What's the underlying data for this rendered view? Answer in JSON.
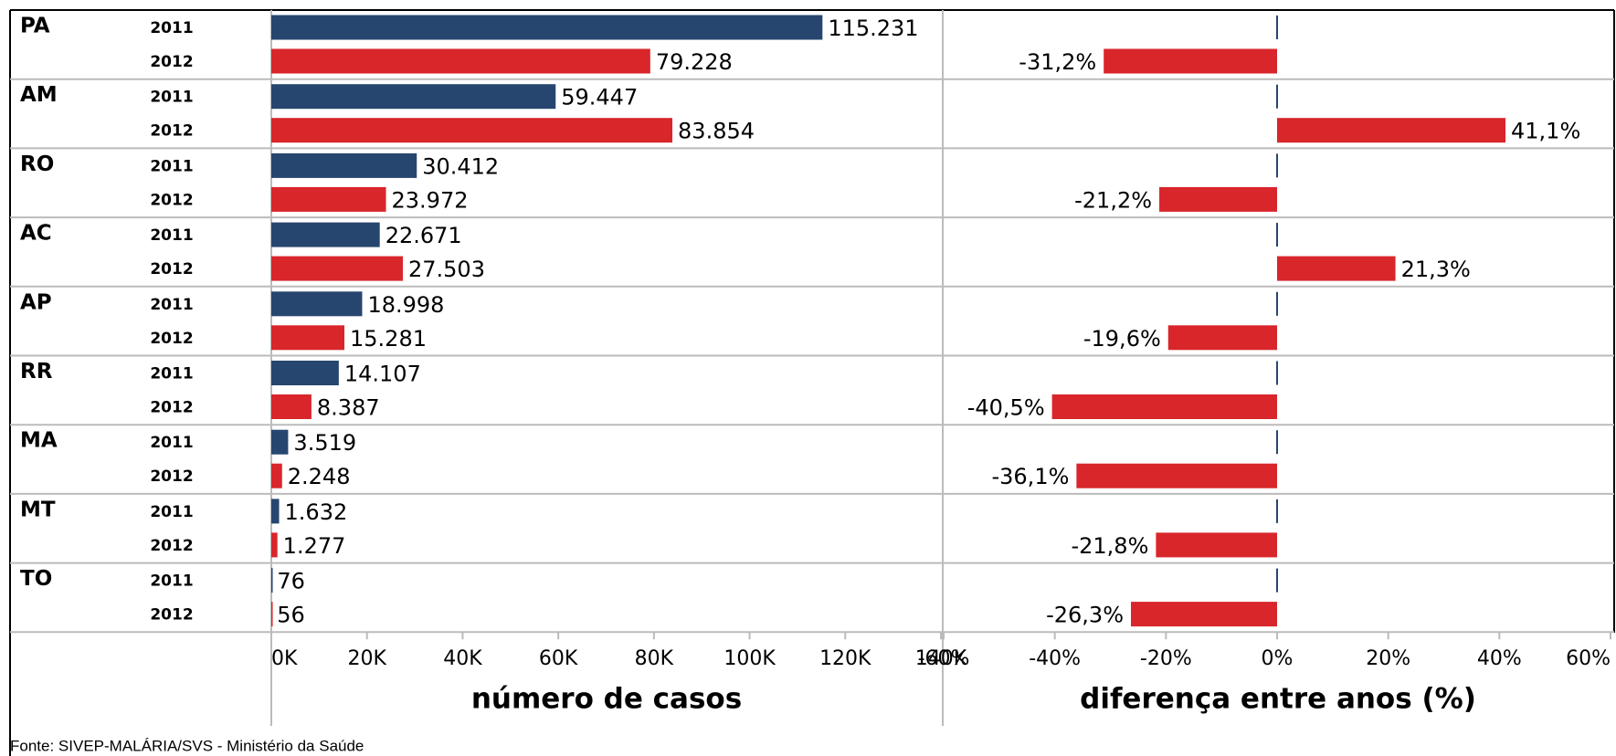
{
  "chart_data": [
    {
      "type": "bar",
      "orientation": "horizontal",
      "categories": [
        "PA",
        "AM",
        "RO",
        "AC",
        "AP",
        "RR",
        "MA",
        "MT",
        "TO"
      ],
      "series": [
        {
          "name": "2011",
          "color": "#27466f",
          "values": [
            115231,
            59447,
            30412,
            22671,
            18998,
            14107,
            3519,
            1632,
            76
          ],
          "value_labels": [
            "115.231",
            "59.447",
            "30.412",
            "22.671",
            "18.998",
            "14.107",
            "3.519",
            "1.632",
            "76"
          ]
        },
        {
          "name": "2012",
          "color": "#d8262b",
          "values": [
            79228,
            83854,
            23972,
            27503,
            15281,
            8387,
            2248,
            1277,
            56
          ],
          "value_labels": [
            "79.228",
            "83.854",
            "23.972",
            "27.503",
            "15.281",
            "8.387",
            "2.248",
            "1.277",
            "56"
          ]
        }
      ],
      "xlabel": "número de casos",
      "xlim": [
        0,
        140000
      ],
      "xticks": [
        {
          "value": 0,
          "label": "0K"
        },
        {
          "value": 20000,
          "label": "20K"
        },
        {
          "value": 40000,
          "label": "40K"
        },
        {
          "value": 60000,
          "label": "60K"
        },
        {
          "value": 80000,
          "label": "80K"
        },
        {
          "value": 100000,
          "label": "100K"
        },
        {
          "value": 120000,
          "label": "120K"
        },
        {
          "value": 140000,
          "label": "140K"
        }
      ]
    },
    {
      "type": "bar",
      "orientation": "horizontal",
      "series": [
        {
          "color": "#d8262b",
          "values": [
            -31.2,
            41.1,
            -21.2,
            21.3,
            -19.6,
            -40.5,
            -36.1,
            -21.8,
            -26.3
          ],
          "value_labels": [
            "-31,2%",
            "41,1%",
            "-21,2%",
            "21,3%",
            "-19,6%",
            "-40,5%",
            "-36,1%",
            "-21,8%",
            "-26,3%"
          ]
        }
      ],
      "xlabel": "diferença entre anos (%)",
      "xlim": [
        -60,
        60
      ],
      "xticks": [
        {
          "value": -60,
          "label": "-60%"
        },
        {
          "value": -40,
          "label": "-40%"
        },
        {
          "value": -20,
          "label": "-20%"
        },
        {
          "value": 0,
          "label": "0%"
        },
        {
          "value": 20,
          "label": "20%"
        },
        {
          "value": 40,
          "label": "40%"
        },
        {
          "value": 60,
          "label": "60%"
        }
      ]
    }
  ],
  "source": "Fonte: SIVEP-MALÁRIA/SVS - Ministério da Saúde"
}
